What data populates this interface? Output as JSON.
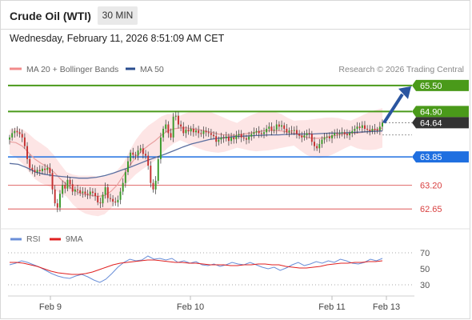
{
  "header": {
    "title": "Crude Oil (WTI)",
    "timeframe": "30 MIN"
  },
  "datetime": "Wednesday, February 11, 2026 8:51:09 AM CET",
  "legend": {
    "ma20": "MA 20 + Bollinger Bands",
    "ma50": "MA 50",
    "credit": "Research © 2026 Trading Central"
  },
  "colors": {
    "resistance": "#4a9a1a",
    "support": "#1f6fe0",
    "pivot_red": "#d94040",
    "current": "#333333",
    "candle_up": "#3a9a2a",
    "candle_down": "#c43030",
    "band_fill": "#fde0e0",
    "ma20": "#e9a0a0",
    "ma50": "#5b6fa0",
    "rsi": "#6a8fd8",
    "rsi_ma": "#e02020",
    "arrow": "#2a55a0"
  },
  "chart_data": [
    {
      "type": "candlestick",
      "title": "Crude Oil (WTI)",
      "ylim": [
        62.45,
        65.7
      ],
      "x_ticks": [
        "Feb 9",
        "Feb 10",
        "Feb 11",
        "Feb 13"
      ],
      "levels": [
        {
          "label": "65.50",
          "value": 65.5,
          "kind": "resistance"
        },
        {
          "label": "64.90",
          "value": 64.9,
          "kind": "resistance"
        },
        {
          "label": "64.64",
          "value": 64.64,
          "kind": "current"
        },
        {
          "label": "63.85",
          "value": 63.85,
          "kind": "support"
        },
        {
          "label": "63.20",
          "value": 63.2,
          "kind": "pivot"
        },
        {
          "label": "62.65",
          "value": 62.65,
          "kind": "pivot"
        }
      ],
      "projection": {
        "from": 64.64,
        "to": 65.5,
        "direction": "up"
      },
      "close": [
        64.3,
        64.4,
        64.45,
        64.42,
        64.38,
        64.3,
        64.1,
        63.8,
        63.6,
        63.55,
        63.5,
        63.55,
        63.52,
        63.58,
        63.55,
        63.6,
        63.48,
        63.1,
        62.78,
        62.68,
        63.0,
        63.2,
        63.12,
        63.32,
        63.22,
        63.05,
        63.1,
        63.08,
        63.02,
        63.05,
        63.0,
        62.98,
        63.05,
        63.02,
        62.95,
        62.8,
        62.78,
        62.98,
        63.15,
        62.9,
        62.88,
        62.82,
        62.8,
        62.86,
        63.05,
        63.25,
        63.5,
        63.75,
        63.95,
        63.9,
        63.88,
        64.0,
        64.05,
        63.92,
        63.88,
        63.65,
        63.25,
        63.1,
        63.3,
        63.8,
        64.3,
        64.5,
        64.6,
        64.4,
        64.3,
        64.78,
        64.8,
        64.6,
        64.55,
        64.4,
        64.48,
        64.44,
        64.5,
        64.42,
        64.46,
        64.4,
        64.38,
        64.45,
        64.42,
        64.4,
        64.36,
        64.33,
        64.2,
        64.25,
        64.3,
        64.28,
        64.32,
        64.22,
        64.3,
        64.26,
        64.35,
        64.38,
        64.3,
        64.28,
        64.25,
        64.32,
        64.38,
        64.42,
        64.45,
        64.4,
        64.38,
        64.42,
        64.5,
        64.55,
        64.46,
        64.48,
        64.6,
        64.55,
        64.58,
        64.5,
        64.42,
        64.46,
        64.45,
        64.47,
        64.38,
        64.34,
        64.3,
        64.35,
        64.4,
        64.38,
        64.2,
        64.1,
        64.05,
        64.15,
        64.25,
        64.3,
        64.32,
        64.28,
        64.35,
        64.4,
        64.38,
        64.4,
        64.42,
        64.38,
        64.35,
        64.4,
        64.45,
        64.5,
        64.55,
        64.52,
        64.58,
        64.5,
        64.48,
        64.45,
        64.5,
        64.48,
        64.46,
        64.55,
        64.64
      ],
      "ma20_points": [
        64.2,
        64.18,
        64.1,
        63.95,
        63.8,
        63.7,
        63.62,
        63.5,
        63.35,
        63.22,
        63.1,
        63.02,
        62.98,
        62.96,
        62.94,
        62.96,
        63.05,
        63.2,
        63.42,
        63.65,
        63.85,
        64.0,
        64.12,
        64.22,
        64.35,
        64.45,
        64.5,
        64.52,
        64.52,
        64.5,
        64.48,
        64.45,
        64.42,
        64.38,
        64.36,
        64.35,
        64.35,
        64.38,
        64.4,
        64.42,
        64.45,
        64.46,
        64.46,
        64.45,
        64.42,
        64.4,
        64.35,
        64.3,
        64.28,
        64.28,
        64.3,
        64.33,
        64.36,
        64.38,
        64.4,
        64.4,
        64.42,
        64.45,
        64.48,
        64.52
      ],
      "ma50_points": [
        63.7,
        63.68,
        63.6,
        63.5,
        63.45,
        63.42,
        63.4,
        63.38,
        63.36,
        63.36,
        63.38,
        63.42,
        63.48,
        63.55,
        63.62,
        63.7,
        63.78,
        63.85,
        63.92,
        64.0,
        64.08,
        64.15,
        64.2,
        64.25,
        64.28,
        64.3,
        64.32,
        64.33,
        64.34,
        64.35,
        64.36,
        64.36,
        64.37,
        64.38,
        64.38,
        64.38,
        64.39,
        64.4,
        64.4,
        64.41,
        64.42,
        64.43,
        64.44,
        64.45
      ]
    },
    {
      "type": "line",
      "legend": [
        "RSI",
        "9MA"
      ],
      "ylim": [
        20,
        80
      ],
      "y_ticks": [
        70,
        50,
        30
      ],
      "rsi_points": [
        55,
        57,
        60,
        58,
        55,
        52,
        48,
        44,
        41,
        39,
        38,
        41,
        43,
        40,
        36,
        33,
        37,
        44,
        52,
        58,
        62,
        60,
        61,
        66,
        62,
        63,
        61,
        63,
        58,
        60,
        57,
        59,
        55,
        54,
        56,
        53,
        55,
        58,
        56,
        55,
        58,
        55,
        52,
        50,
        52,
        48,
        51,
        55,
        58,
        54,
        56,
        59,
        57,
        60,
        58,
        62,
        60,
        57,
        56,
        58,
        62,
        60,
        63
      ],
      "rsi_ma_points": [
        58,
        58,
        57,
        55,
        53,
        50,
        47,
        45,
        44,
        43,
        43,
        44,
        46,
        49,
        52,
        55,
        57,
        58,
        59,
        60,
        61,
        61,
        60,
        59,
        58,
        58,
        57,
        57,
        56,
        55,
        55,
        55,
        54,
        54,
        55,
        55,
        56,
        56,
        55,
        55,
        53,
        52,
        51,
        51,
        52,
        53,
        55,
        56,
        57,
        57,
        58,
        58,
        59,
        59,
        60
      ]
    }
  ]
}
